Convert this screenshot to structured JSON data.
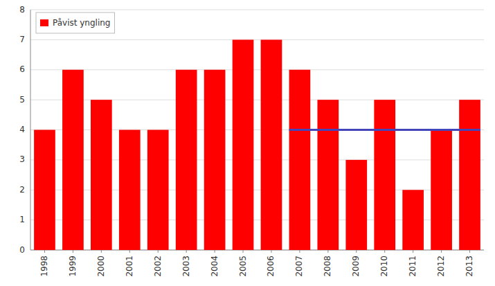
{
  "chart_data": {
    "type": "bar",
    "categories": [
      "1998",
      "1999",
      "2000",
      "2001",
      "2002",
      "2003",
      "2004",
      "2005",
      "2006",
      "2007",
      "2008",
      "2009",
      "2010",
      "2011",
      "2012",
      "2013"
    ],
    "series": [
      {
        "name": "Påvist yngling",
        "color": "#ff0000",
        "values": [
          4,
          6,
          5,
          4,
          4,
          6,
          6,
          7,
          7,
          6,
          5,
          3,
          5,
          2,
          4,
          5
        ]
      },
      {
        "type": "line",
        "color": "#4444bb",
        "values": [
          null,
          null,
          null,
          null,
          null,
          null,
          null,
          null,
          null,
          4,
          4,
          4,
          4,
          4,
          4,
          4
        ]
      }
    ],
    "ylim": [
      0,
      8
    ],
    "yticks": [
      0,
      1,
      2,
      3,
      4,
      5,
      6,
      7,
      8
    ],
    "grid": true,
    "legend": "upper left"
  }
}
